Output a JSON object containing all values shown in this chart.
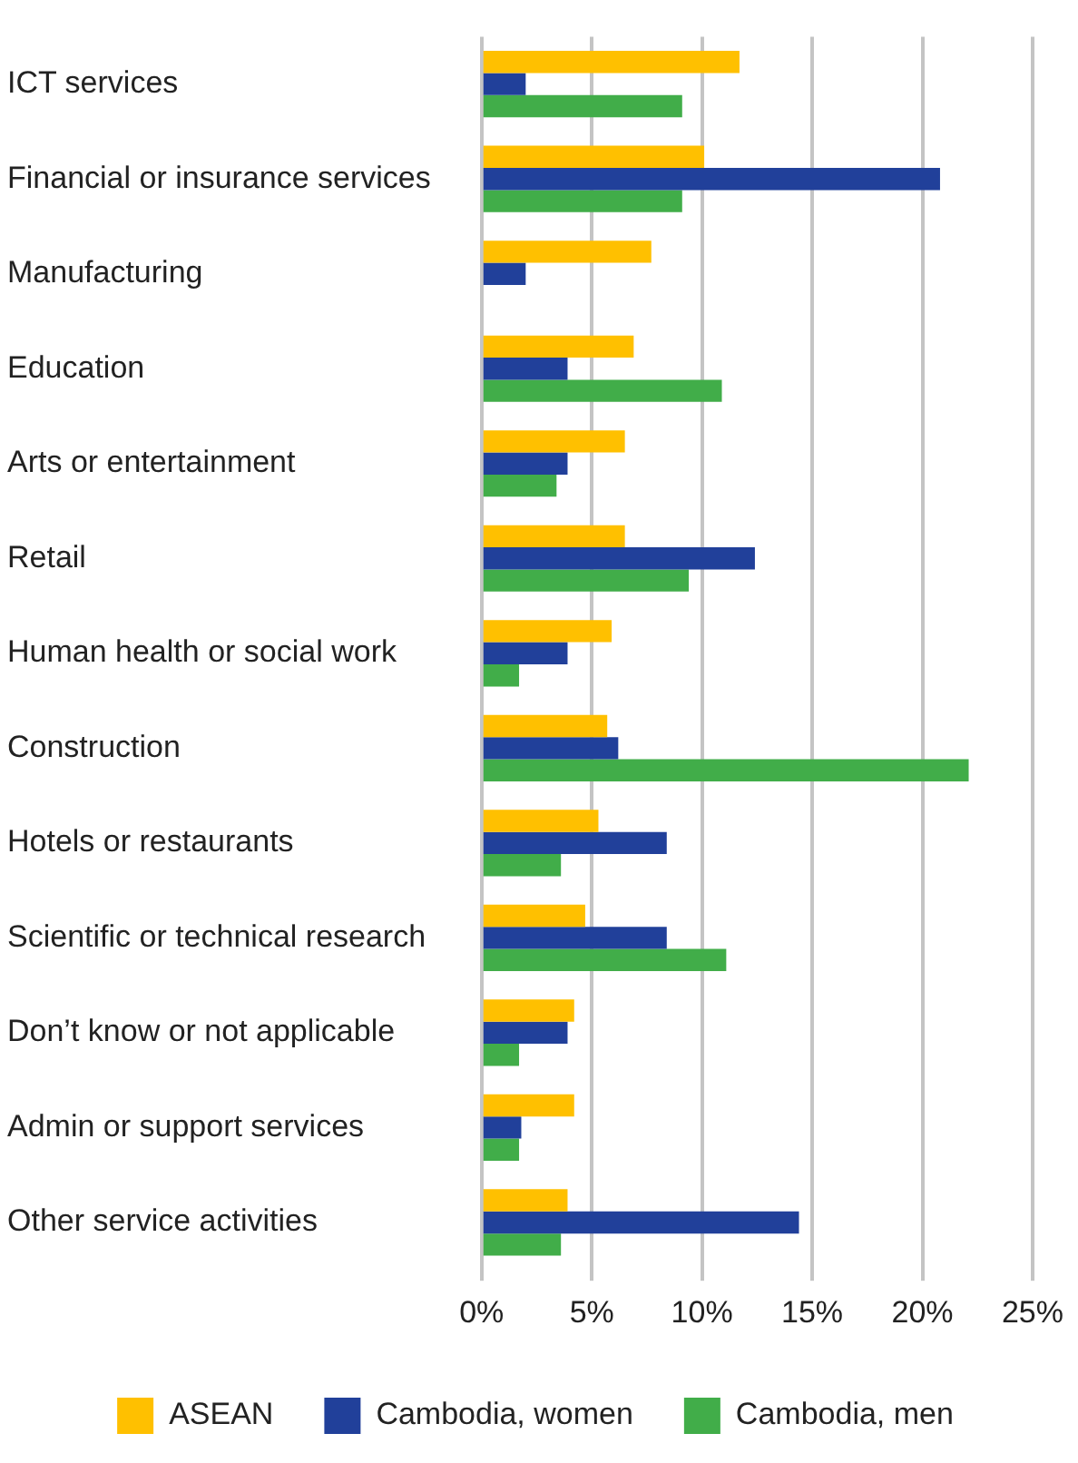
{
  "chart_data": {
    "type": "bar",
    "orientation": "horizontal",
    "categories": [
      "ICT services",
      "Financial or insurance services",
      "Manufacturing",
      "Education",
      "Arts or entertainment",
      "Retail",
      "Human health or social work",
      "Construction",
      "Hotels or restaurants",
      "Scientific or technical research",
      "Don’t know or not applicable",
      "Admin or support services",
      "Other service activities"
    ],
    "series": [
      {
        "name": "ASEAN",
        "color": "#ffc000",
        "values": [
          11.7,
          10.1,
          7.7,
          6.9,
          6.5,
          6.5,
          5.9,
          5.7,
          5.3,
          4.7,
          4.2,
          4.2,
          3.9
        ]
      },
      {
        "name": "Cambodia, women",
        "color": "#21409a",
        "values": [
          2.0,
          20.8,
          2.0,
          3.9,
          3.9,
          12.4,
          3.9,
          6.2,
          8.4,
          8.4,
          3.9,
          1.8,
          14.4
        ]
      },
      {
        "name": "Cambodia, men",
        "color": "#41ad49",
        "values": [
          9.1,
          9.1,
          null,
          10.9,
          3.4,
          9.4,
          1.7,
          22.1,
          3.6,
          11.1,
          1.7,
          1.7,
          3.6
        ]
      }
    ],
    "xlim": [
      0,
      25
    ],
    "xticks": [
      {
        "value": 0,
        "label": "0%"
      },
      {
        "value": 5,
        "label": "5%"
      },
      {
        "value": 10,
        "label": "10%"
      },
      {
        "value": 15,
        "label": "15%"
      },
      {
        "value": 20,
        "label": "20%"
      },
      {
        "value": 25,
        "label": "25%"
      }
    ],
    "grid": "x",
    "legend": "bottom"
  }
}
